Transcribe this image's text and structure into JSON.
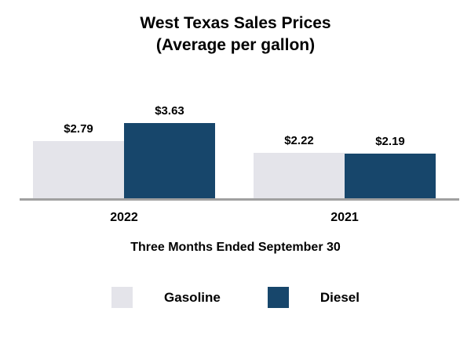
{
  "chart_data": {
    "type": "bar",
    "title": "West Texas Sales Prices",
    "subtitle": "(Average per gallon)",
    "xlabel": "Three Months Ended September 30",
    "categories": [
      "2022",
      "2021"
    ],
    "series": [
      {
        "name": "Gasoline",
        "color": "#e4e4ea",
        "values": [
          2.79,
          2.22
        ],
        "labels": [
          "$2.79",
          "$2.22"
        ]
      },
      {
        "name": "Diesel",
        "color": "#17466b",
        "values": [
          3.63,
          2.19
        ],
        "labels": [
          "$3.63",
          "$2.19"
        ]
      }
    ],
    "ylim": [
      0,
      4
    ],
    "grid": false,
    "legend_position": "bottom",
    "baseline_color": "#a0a0a0"
  }
}
